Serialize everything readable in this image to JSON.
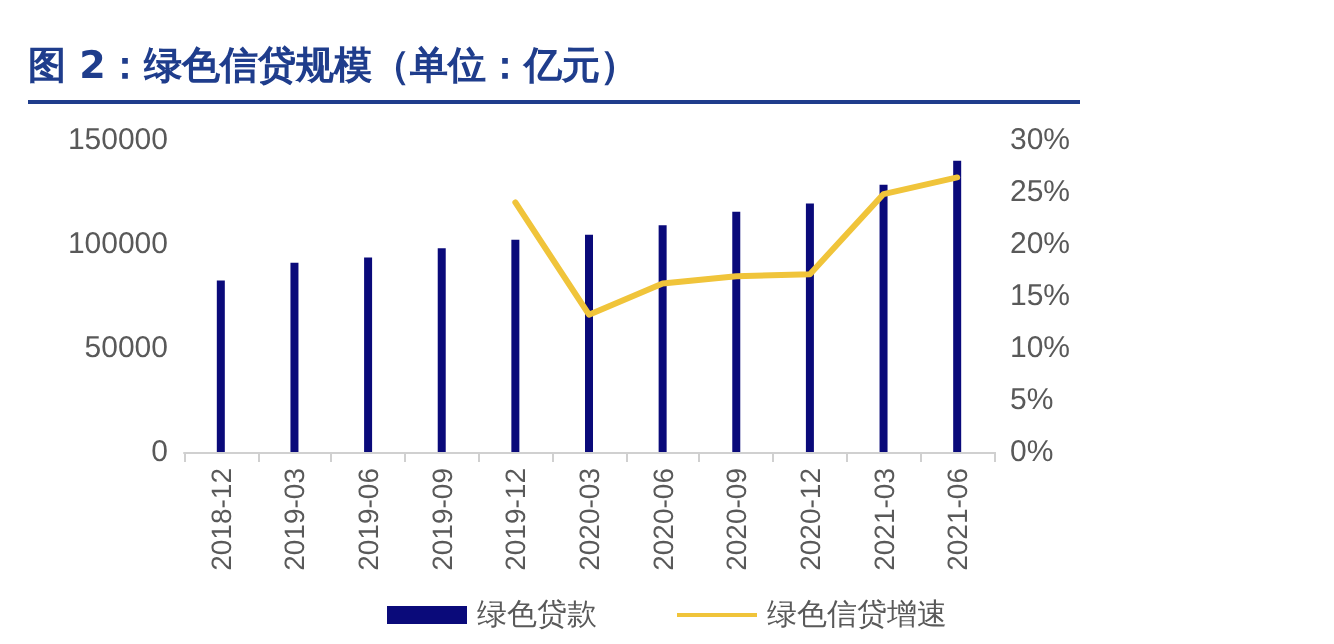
{
  "chart_data": {
    "type": "bar",
    "title": "图 2：绿色信贷规模（单位：亿元）",
    "categories": [
      "2018-12",
      "2019-03",
      "2019-06",
      "2019-09",
      "2019-12",
      "2020-03",
      "2020-06",
      "2020-09",
      "2020-12",
      "2021-03",
      "2021-06"
    ],
    "series": [
      {
        "name": "绿色贷款",
        "color": "#0a0a7a",
        "values": [
          82500,
          91000,
          93500,
          98000,
          102000,
          104500,
          109000,
          115500,
          119500,
          128500,
          140000
        ]
      },
      {
        "name": "绿色信贷增速",
        "type": "line",
        "axis": "y2",
        "color": "#f0c43a",
        "values": [
          null,
          null,
          null,
          null,
          24,
          13.2,
          16.2,
          16.9,
          17.1,
          24.8,
          26.4
        ]
      }
    ],
    "ylim": [
      0,
      150000
    ],
    "yticks": [
      0,
      50000,
      100000,
      150000
    ],
    "y2lim": [
      0,
      30
    ],
    "y2ticks": [
      {
        "value": 0,
        "label": "0%"
      },
      {
        "value": 5,
        "label": "5%"
      },
      {
        "value": 10,
        "label": "10%"
      },
      {
        "value": 15,
        "label": "15%"
      },
      {
        "value": 20,
        "label": "20%"
      },
      {
        "value": 25,
        "label": "25%"
      },
      {
        "value": 30,
        "label": "30%"
      }
    ],
    "grid": false,
    "legend": "bottom",
    "marker": "none"
  }
}
